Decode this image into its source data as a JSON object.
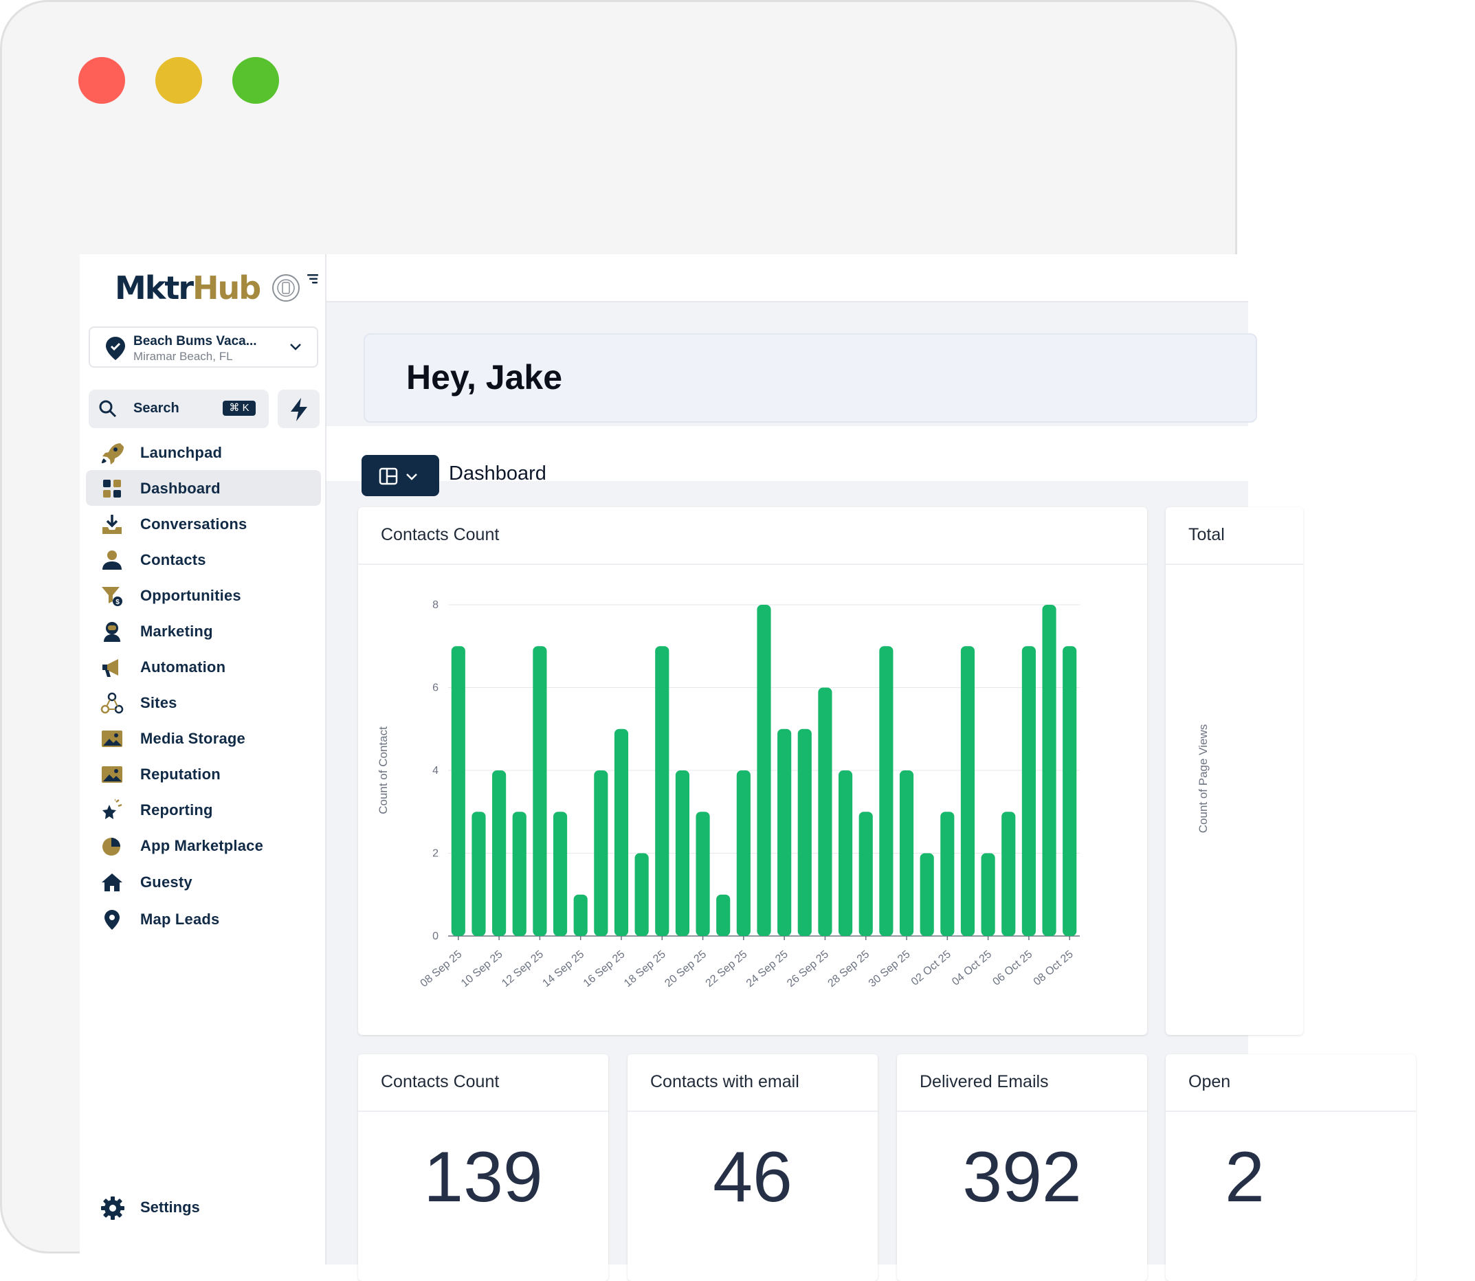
{
  "brand": {
    "name_part1": "Mktr",
    "name_part2": "Hub"
  },
  "window_controls": {
    "close_color": "#fe5f57",
    "minimize_color": "#e6bd2d",
    "maximize_color": "#57c22d"
  },
  "location": {
    "name": "Beach Bums Vaca...",
    "city": "Miramar Beach, FL"
  },
  "search": {
    "label": "Search",
    "shortcut": "⌘ K"
  },
  "nav": {
    "items": [
      {
        "label": "Launchpad",
        "icon": "rocket-icon"
      },
      {
        "label": "Dashboard",
        "icon": "dashboard-grid-icon",
        "active": true
      },
      {
        "label": "Conversations",
        "icon": "inbox-download-icon"
      },
      {
        "label": "Contacts",
        "icon": "person-icon"
      },
      {
        "label": "Opportunities",
        "icon": "funnel-dollar-icon"
      },
      {
        "label": "Marketing",
        "icon": "astronaut-icon"
      },
      {
        "label": "Automation",
        "icon": "megaphone-icon"
      },
      {
        "label": "Sites",
        "icon": "network-icon"
      },
      {
        "label": "Media Storage",
        "icon": "image-icon"
      },
      {
        "label": "Reputation",
        "icon": "image-icon"
      },
      {
        "label": "Reporting",
        "icon": "star-sparkle-icon"
      },
      {
        "label": "App Marketplace",
        "icon": "pie-chart-icon"
      },
      {
        "label": "Guesty",
        "icon": "home-icon"
      },
      {
        "label": "Map Leads",
        "icon": "map-pin-icon"
      }
    ],
    "settings_label": "Settings"
  },
  "greeting": "Hey, Jake",
  "dashboard": {
    "title": "Dashboard"
  },
  "cards": {
    "contacts_chart_title": "Contacts Count",
    "total_card_title": "Total",
    "page_views_ylabel": "Count of Page Views",
    "contacts_count": {
      "title": "Contacts Count",
      "value": "139"
    },
    "contacts_with_email": {
      "title": "Contacts with email",
      "value": "46"
    },
    "delivered_emails": {
      "title": "Delivered Emails",
      "value": "392"
    },
    "open_card": {
      "title": "Open",
      "value": "2"
    }
  },
  "chart_data": {
    "type": "bar",
    "title": "Contacts Count",
    "ylabel": "Count of Contact",
    "xlabel": "",
    "ylim": [
      0,
      8
    ],
    "yticks": [
      0,
      2,
      4,
      6,
      8
    ],
    "grid": true,
    "bar_color": "#17b86b",
    "x_tick_labels": [
      "08 Sep 25",
      "10 Sep 25",
      "12 Sep 25",
      "14 Sep 25",
      "16 Sep 25",
      "18 Sep 25",
      "20 Sep 25",
      "22 Sep 25",
      "24 Sep 25",
      "26 Sep 25",
      "28 Sep 25",
      "30 Sep 25",
      "02 Oct 25",
      "04 Oct 25",
      "06 Oct 25",
      "08 Oct 25"
    ],
    "values": [
      7,
      3,
      4,
      3,
      7,
      3,
      1,
      4,
      5,
      2,
      7,
      4,
      3,
      1,
      4,
      8,
      5,
      5,
      6,
      4,
      3,
      7,
      4,
      2,
      3,
      7,
      2,
      3,
      7,
      8,
      7
    ]
  }
}
